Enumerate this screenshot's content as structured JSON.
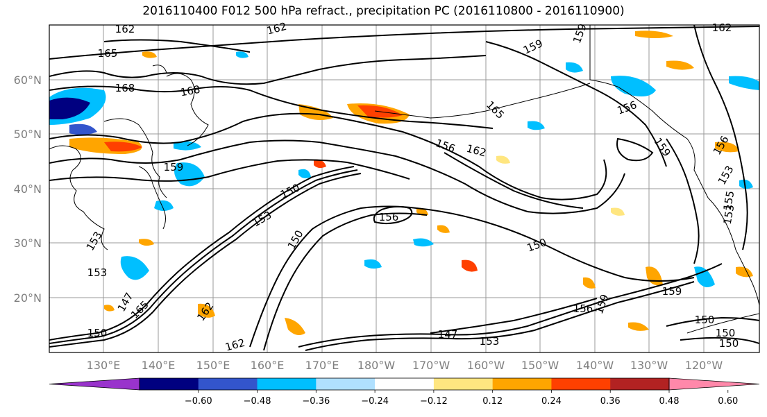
{
  "title": "2016110400 F012 500 hPa refract., precipitation PC (2016110800 - 2016110900)",
  "lat_labels": [
    "60°N",
    "50°N",
    "40°N",
    "30°N",
    "20°N"
  ],
  "lon_labels": [
    "130°E",
    "140°E",
    "150°E",
    "160°E",
    "170°E",
    "180°W",
    "170°W",
    "160°W",
    "150°W",
    "140°W",
    "130°W",
    "120°W"
  ],
  "colorbar": {
    "colors": [
      "#9933cc",
      "#000080",
      "#3355cc",
      "#00bfff",
      "#b0e0ff",
      "#ffffff",
      "#ffe680",
      "#ffa500",
      "#ff4000",
      "#b22222",
      "#ff88aa"
    ],
    "tick_labels": [
      "−0.60",
      "−0.48",
      "−0.36",
      "−0.24",
      "−0.12",
      "0.12",
      "0.24",
      "0.36",
      "0.48",
      "0.60"
    ]
  },
  "contour_labels": [
    "162",
    "165",
    "168",
    "168",
    "162",
    "159",
    "159",
    "162",
    "165",
    "156",
    "162",
    "156",
    "159",
    "156",
    "153",
    "159",
    "150",
    "153",
    "156",
    "150",
    "150",
    "153",
    "150",
    "147",
    "165",
    "162",
    "162",
    "147",
    "159",
    "153",
    "156",
    "159",
    "150",
    "150",
    "153",
    "155",
    "153",
    "150"
  ],
  "contour_levels_note": "",
  "fill_colors": {
    "neg_strong": "#000080",
    "neg_mid": "#3355cc",
    "neg_light": "#00bfff",
    "neg_pale": "#b0e0ff",
    "pos_pale": "#ffe680",
    "pos_light": "#ffa500",
    "pos_mid": "#ff4000",
    "pos_strong": "#b22222"
  }
}
